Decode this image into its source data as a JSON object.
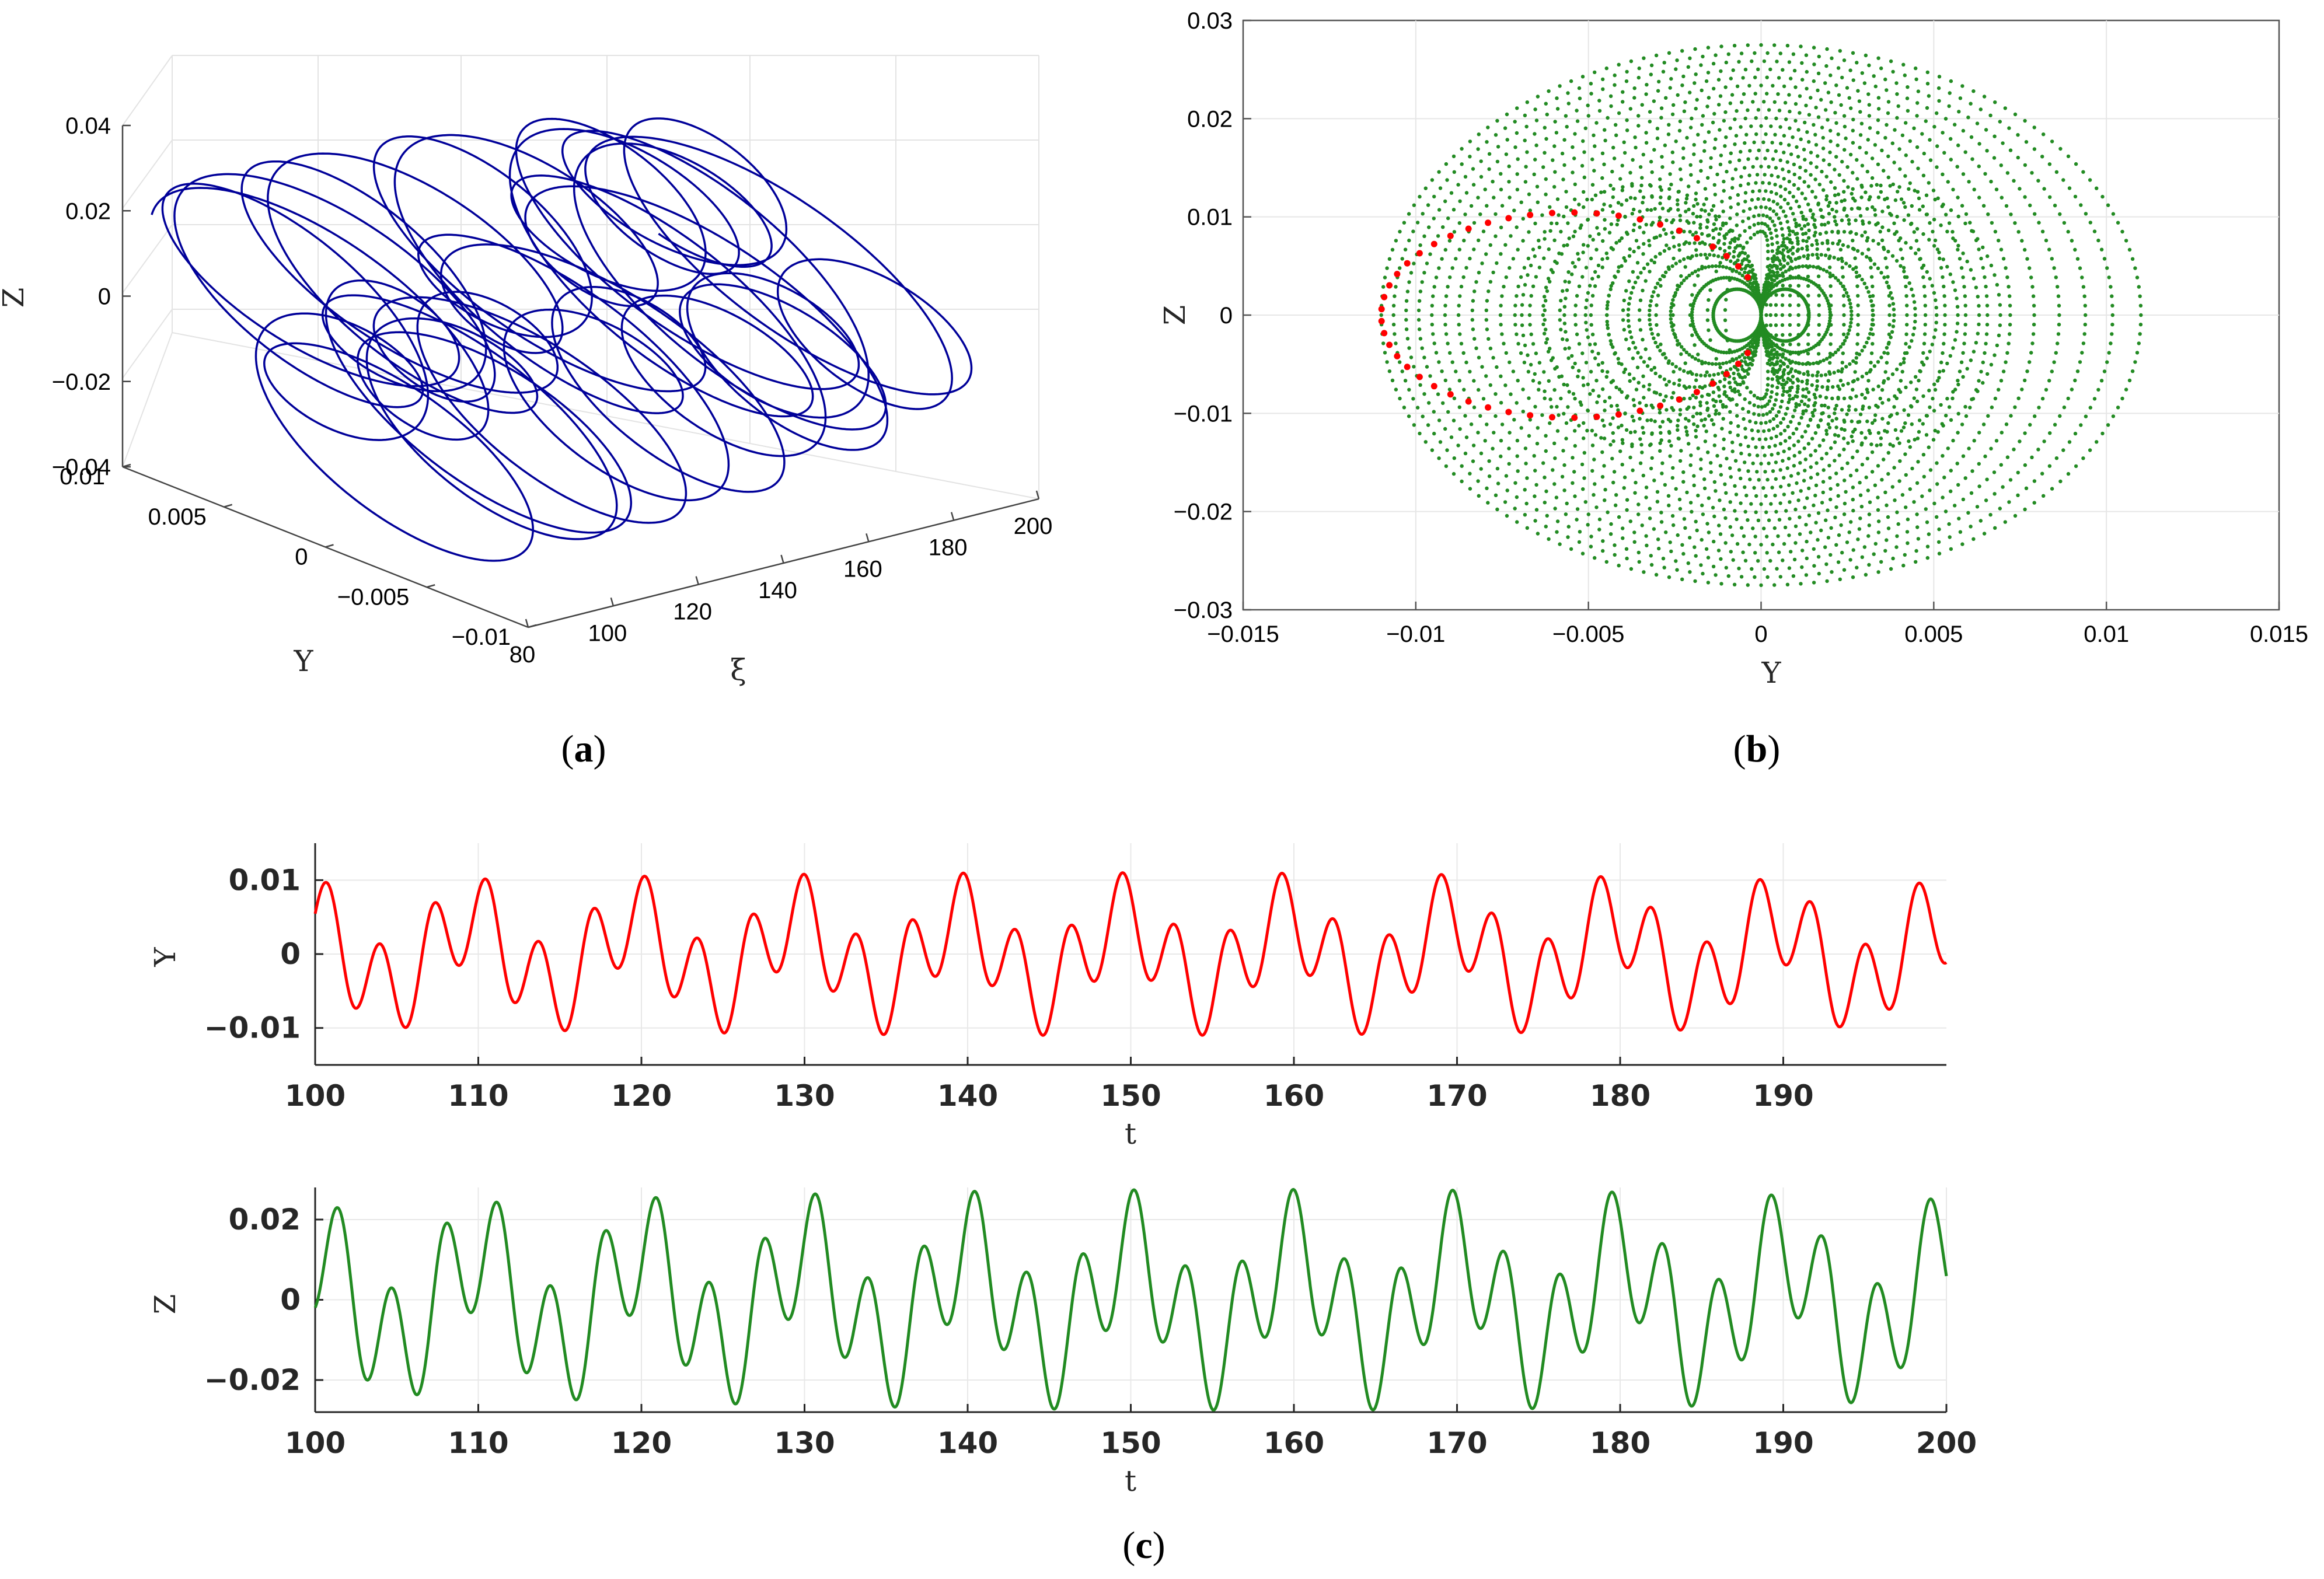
{
  "figure": {
    "captions": [
      {
        "open": "(",
        "letter": "a",
        "close": ")"
      },
      {
        "open": "(",
        "letter": "b",
        "close": ")"
      },
      {
        "open": "(",
        "letter": "c",
        "close": ")"
      }
    ]
  },
  "chart_data": [
    {
      "id": "a",
      "type": "line",
      "projection": "3d",
      "xlabel": "ξ",
      "ylabel": "Y",
      "zlabel": "Z",
      "xlim": [
        80,
        200
      ],
      "ylim": [
        -0.01,
        0.01
      ],
      "zlim": [
        -0.04,
        0.04
      ],
      "xticks": [
        "80",
        "100",
        "120",
        "140",
        "160",
        "180",
        "200"
      ],
      "yticks": [
        "−0.01",
        "−0.005",
        "0",
        "0.005",
        "0.01"
      ],
      "zticks": [
        "−0.04",
        "−0.02",
        "0",
        "0.02",
        "0.04"
      ],
      "grid": true,
      "series": [
        {
          "color": "#000099",
          "t_range": [
            0,
            100
          ],
          "ay": 0.011,
          "az": 0.027
        }
      ]
    },
    {
      "id": "b",
      "type": "scatter",
      "xlabel": "Y",
      "ylabel": "Z",
      "xlim": [
        -0.015,
        0.015
      ],
      "ylim": [
        -0.03,
        0.03
      ],
      "xticks": [
        "−0.015",
        "−0.01",
        "−0.005",
        "0",
        "0.005",
        "0.01",
        "0.015"
      ],
      "yticks": [
        "−0.03",
        "−0.02",
        "−0.01",
        "0",
        "0.01",
        "0.02",
        "0.03"
      ],
      "grid": true,
      "series": [
        {
          "color": "#228b22",
          "kind": "torus-section",
          "ay": 0.011,
          "az": 0.0275
        },
        {
          "color": "#ff0000",
          "kind": "poincare-section",
          "ay": 0.011,
          "az": 0.0275
        }
      ]
    },
    {
      "id": "c1",
      "type": "line",
      "xlabel": "t",
      "ylabel": "Y",
      "xlim": [
        100,
        200
      ],
      "ylim": [
        -0.015,
        0.015
      ],
      "xticks": [
        "100",
        "110",
        "120",
        "130",
        "140",
        "150",
        "160",
        "170",
        "180",
        "190"
      ],
      "yticks": [
        "−0.01",
        "0",
        "0.01"
      ],
      "grid": true,
      "series": [
        {
          "color": "#ff0000",
          "amplitude": 0.011
        }
      ]
    },
    {
      "id": "c2",
      "type": "line",
      "xlabel": "t",
      "ylabel": "Z",
      "xlim": [
        100,
        200
      ],
      "ylim": [
        -0.028,
        0.028
      ],
      "xticks": [
        "100",
        "110",
        "120",
        "130",
        "140",
        "150",
        "160",
        "170",
        "180",
        "190",
        "200"
      ],
      "yticks": [
        "−0.02",
        "0",
        "0.02"
      ],
      "grid": true,
      "series": [
        {
          "color": "#228b22",
          "amplitude": 0.0275
        }
      ]
    }
  ]
}
